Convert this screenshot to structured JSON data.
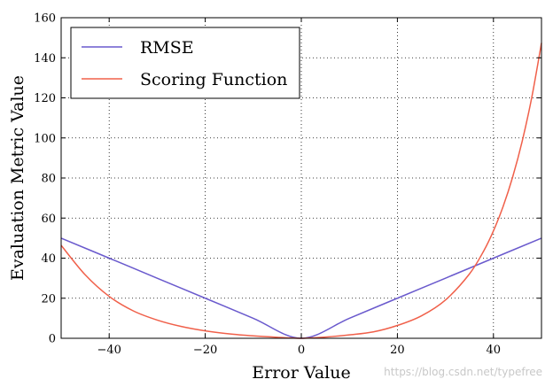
{
  "chart_data": {
    "type": "line",
    "title": "",
    "xlabel": "Error Value",
    "ylabel": "Evaluation Metric Value",
    "xlim": [
      -50,
      50
    ],
    "ylim": [
      0,
      160
    ],
    "xticks": [
      -40,
      -20,
      0,
      20,
      40
    ],
    "yticks": [
      0,
      20,
      40,
      60,
      80,
      100,
      120,
      140,
      160
    ],
    "xtick_labels": [
      "−40",
      "−20",
      "0",
      "20",
      "40"
    ],
    "ytick_labels": [
      "0",
      "20",
      "40",
      "60",
      "80",
      "100",
      "120",
      "140",
      "160"
    ],
    "grid": true,
    "legend": "top-left",
    "series": [
      {
        "name": "RMSE",
        "color": "#6a5acd",
        "x": [
          -50,
          -40,
          -30,
          -20,
          -10,
          0,
          10,
          20,
          30,
          40,
          50
        ],
        "y": [
          50,
          40,
          30,
          20,
          10,
          0,
          10,
          20,
          30,
          40,
          50
        ]
      },
      {
        "name": "Scoring Function",
        "color": "#f0604a",
        "x": [
          -50,
          -45,
          -40,
          -35,
          -30,
          -25,
          -20,
          -15,
          -10,
          -5,
          0,
          5,
          10,
          15,
          20,
          25,
          30,
          35,
          38,
          40,
          42,
          44,
          46,
          48,
          50
        ],
        "y": [
          46.4,
          31.7,
          20.9,
          13.7,
          9.1,
          5.9,
          3.7,
          2.2,
          1.2,
          0.5,
          0,
          0.6,
          1.7,
          3.2,
          6.4,
          11.2,
          19.1,
          32.1,
          43.7,
          53.6,
          65.7,
          80.5,
          98.5,
          120.5,
          147.4
        ]
      }
    ]
  },
  "watermark": "https://blog.csdn.net/typefree"
}
